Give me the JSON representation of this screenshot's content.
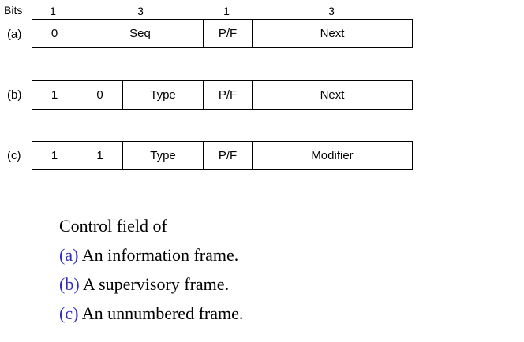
{
  "header": {
    "bits_label": "Bits",
    "bit_counts": [
      "1",
      "3",
      "1",
      "3"
    ]
  },
  "rows": [
    {
      "label": "(a)",
      "cells": [
        "0",
        "Seq",
        "P/F",
        "Next"
      ]
    },
    {
      "label": "(b)",
      "cells": [
        "1",
        "0",
        "Type",
        "P/F",
        "Next"
      ]
    },
    {
      "label": "(c)",
      "cells": [
        "1",
        "1",
        "Type",
        "P/F",
        "Modifier"
      ]
    }
  ],
  "caption": {
    "title": "Control field of",
    "items": [
      {
        "marker": "(a)",
        "text": " An information frame."
      },
      {
        "marker": "(b)",
        "text": " A supervisory frame."
      },
      {
        "marker": "(c)",
        "text": " An unnumbered frame."
      }
    ],
    "marker_color": "#2f2fbf"
  }
}
